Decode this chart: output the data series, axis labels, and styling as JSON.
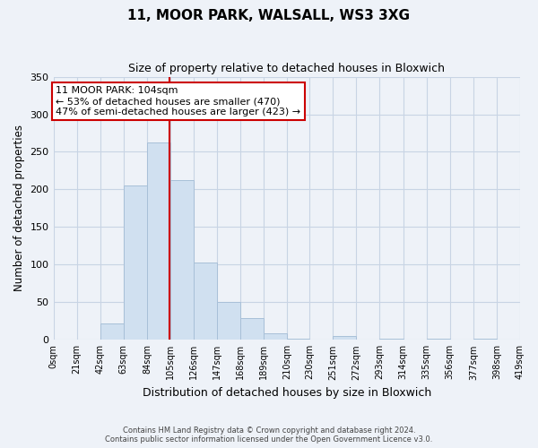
{
  "title1": "11, MOOR PARK, WALSALL, WS3 3XG",
  "title2": "Size of property relative to detached houses in Bloxwich",
  "xlabel": "Distribution of detached houses by size in Bloxwich",
  "ylabel": "Number of detached properties",
  "bin_edges": [
    0,
    21,
    42,
    63,
    84,
    105,
    126,
    147,
    168,
    189,
    210,
    230,
    251,
    272,
    293,
    314,
    335,
    356,
    377,
    398,
    419
  ],
  "bar_heights": [
    0,
    0,
    22,
    205,
    263,
    213,
    103,
    50,
    29,
    9,
    2,
    0,
    5,
    0,
    1,
    0,
    1,
    0,
    1,
    0
  ],
  "bar_color": "#d0e0f0",
  "bar_edge_color": "#a8c0d8",
  "vline_x": 104,
  "vline_color": "#cc0000",
  "annotation_text": "11 MOOR PARK: 104sqm\n← 53% of detached houses are smaller (470)\n47% of semi-detached houses are larger (423) →",
  "annotation_box_color": "#ffffff",
  "annotation_box_edge": "#cc0000",
  "ylim": [
    0,
    350
  ],
  "background_color": "#eef2f8",
  "grid_color": "#c8d4e4",
  "footnote1": "Contains HM Land Registry data © Crown copyright and database right 2024.",
  "footnote2": "Contains public sector information licensed under the Open Government Licence v3.0.",
  "yticks": [
    0,
    50,
    100,
    150,
    200,
    250,
    300,
    350
  ]
}
